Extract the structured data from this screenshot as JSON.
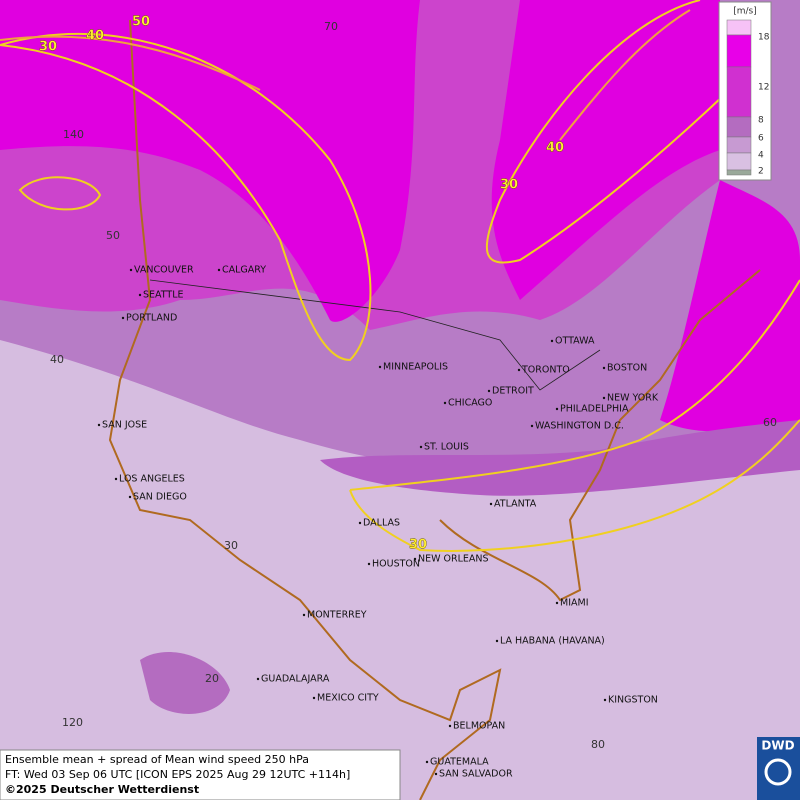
{
  "map": {
    "legend": {
      "unit": "[m/s]",
      "ticks": [
        18,
        12,
        8,
        6,
        4,
        2
      ],
      "colors": [
        "#f6c2f6",
        "#e800e8",
        "#d030d0",
        "#b46cc0",
        "#c79ad2",
        "#d9c0e2",
        "#9aa99a"
      ]
    },
    "cities": [
      "VANCOUVER",
      "CALGARY",
      "SEATTLE",
      "PORTLAND",
      "MINNEAPOLIS",
      "TORONTO",
      "OTTAWA",
      "DETROIT",
      "CHICAGO",
      "BOSTON",
      "NEW YORK",
      "PHILADELPHIA",
      "WASHINGTON D.C.",
      "SAN JOSE",
      "ST. LOUIS",
      "LOS ANGELES",
      "SAN DIEGO",
      "ATLANTA",
      "DALLAS",
      "HOUSTON",
      "NEW ORLEANS",
      "MIAMI",
      "MONTERREY",
      "LA HABANA (HAVANA)",
      "GUADALAJARA",
      "MEXICO CITY",
      "KINGSTON",
      "BELMOPAN",
      "GUATEMALA",
      "SAN SALVADOR"
    ],
    "grid_labels": [
      140,
      50,
      40,
      30,
      20,
      120,
      60,
      80,
      70
    ],
    "contour_labels": [
      50,
      40,
      30,
      40,
      30,
      30
    ],
    "footer": {
      "line1": "Ensemble mean + spread of Mean wind speed 250 hPa",
      "line2": "FT: Wed 03 Sep 06 UTC [ICON EPS 2025 Aug 29 12UTC +114h]",
      "line3": "©2025 Deutscher Wetterdienst"
    },
    "logo": "DWD"
  }
}
